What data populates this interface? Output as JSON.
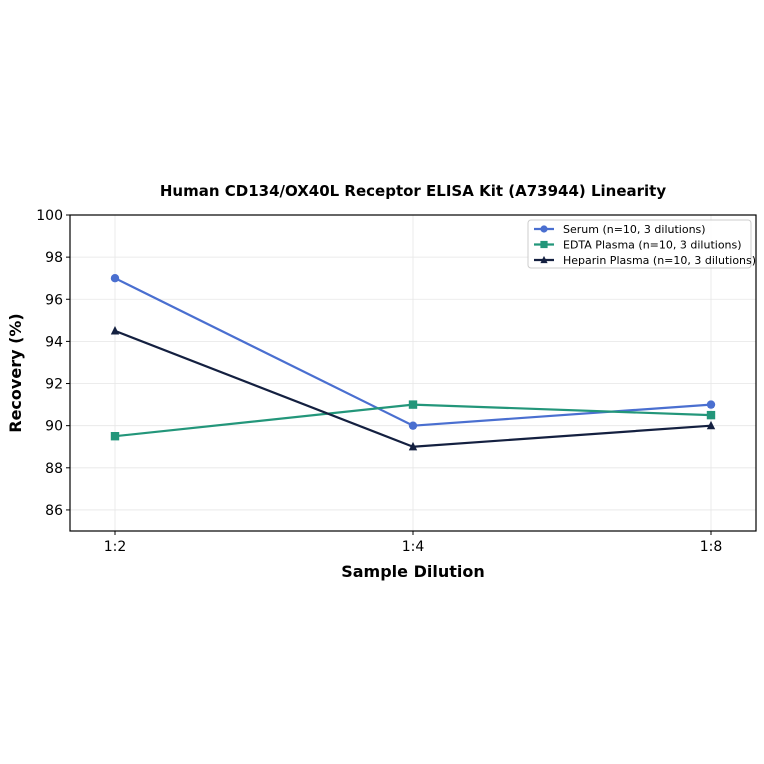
{
  "chart_data": {
    "type": "line",
    "title": "Human CD134/OX40L Receptor ELISA Kit (A73944) Linearity",
    "xlabel": "Sample Dilution",
    "ylabel": "Recovery (%)",
    "categories": [
      "1:2",
      "1:4",
      "1:8"
    ],
    "ylim": [
      85,
      100
    ],
    "yticks": [
      86,
      88,
      90,
      92,
      94,
      96,
      98,
      100
    ],
    "grid": true,
    "legend_position": "top-right",
    "series": [
      {
        "name": "Serum (n=10, 3 dilutions)",
        "values": [
          97.0,
          90.0,
          91.0
        ],
        "color": "#4a6fd0",
        "marker": "circle"
      },
      {
        "name": "EDTA Plasma (n=10, 3 dilutions)",
        "values": [
          89.5,
          91.0,
          90.5
        ],
        "color": "#23967a",
        "marker": "square"
      },
      {
        "name": "Heparin Plasma (n=10, 3 dilutions)",
        "values": [
          94.5,
          89.0,
          90.0
        ],
        "color": "#142040",
        "marker": "triangle"
      }
    ]
  }
}
